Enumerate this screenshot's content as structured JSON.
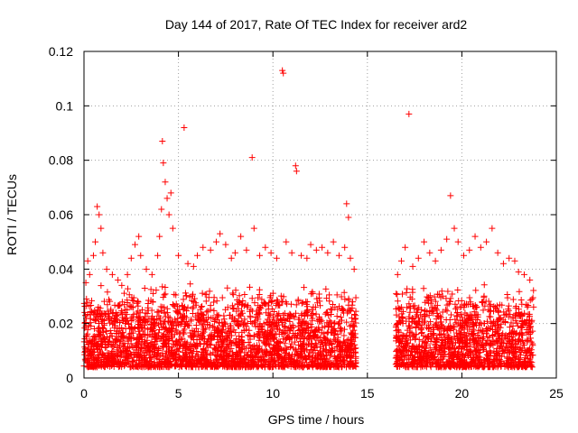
{
  "chart_data": {
    "type": "scatter",
    "title": "Day 144 of 2017, Rate Of TEC Index for receiver ard2",
    "xlabel": "GPS time / hours",
    "ylabel": "ROTI / TECUs",
    "xlim": [
      0,
      25
    ],
    "ylim": [
      0,
      0.12
    ],
    "x_ticks": [
      0,
      5,
      10,
      15,
      20,
      25
    ],
    "x_tick_labels": [
      "0",
      "5",
      "10",
      "15",
      "20",
      "25"
    ],
    "y_ticks": [
      0,
      0.02,
      0.04,
      0.06,
      0.08,
      0.1,
      0.12
    ],
    "y_tick_labels": [
      "0",
      "0.02",
      "0.04",
      "0.06",
      "0.08",
      "0.1",
      "0.12"
    ],
    "grid": true,
    "marker": "+",
    "color": "#ff0000",
    "data_gap_hours": [
      14.4,
      16.5
    ],
    "series": [
      {
        "name": "ROTI",
        "points": [
          [
            0.1,
            0.035
          ],
          [
            0.2,
            0.043
          ],
          [
            0.3,
            0.038
          ],
          [
            0.5,
            0.045
          ],
          [
            0.6,
            0.05
          ],
          [
            0.7,
            0.063
          ],
          [
            0.8,
            0.06
          ],
          [
            0.9,
            0.055
          ],
          [
            1.0,
            0.046
          ],
          [
            1.2,
            0.04
          ],
          [
            1.5,
            0.038
          ],
          [
            1.8,
            0.036
          ],
          [
            2.0,
            0.034
          ],
          [
            2.3,
            0.038
          ],
          [
            2.5,
            0.044
          ],
          [
            2.7,
            0.049
          ],
          [
            2.9,
            0.052
          ],
          [
            3.0,
            0.045
          ],
          [
            3.3,
            0.04
          ],
          [
            3.6,
            0.038
          ],
          [
            3.9,
            0.045
          ],
          [
            4.0,
            0.052
          ],
          [
            4.1,
            0.062
          ],
          [
            4.15,
            0.087
          ],
          [
            4.2,
            0.079
          ],
          [
            4.3,
            0.072
          ],
          [
            4.4,
            0.066
          ],
          [
            4.5,
            0.06
          ],
          [
            4.6,
            0.068
          ],
          [
            4.7,
            0.055
          ],
          [
            5.0,
            0.045
          ],
          [
            5.3,
            0.092
          ],
          [
            5.5,
            0.042
          ],
          [
            5.8,
            0.041
          ],
          [
            6.0,
            0.045
          ],
          [
            6.3,
            0.048
          ],
          [
            6.7,
            0.047
          ],
          [
            7.0,
            0.05
          ],
          [
            7.2,
            0.053
          ],
          [
            7.5,
            0.049
          ],
          [
            7.8,
            0.044
          ],
          [
            8.0,
            0.046
          ],
          [
            8.3,
            0.052
          ],
          [
            8.6,
            0.047
          ],
          [
            8.9,
            0.081
          ],
          [
            9.0,
            0.055
          ],
          [
            9.3,
            0.045
          ],
          [
            9.6,
            0.048
          ],
          [
            9.9,
            0.046
          ],
          [
            10.2,
            0.044
          ],
          [
            10.5,
            0.113
          ],
          [
            10.55,
            0.112
          ],
          [
            10.7,
            0.05
          ],
          [
            11.0,
            0.046
          ],
          [
            11.2,
            0.078
          ],
          [
            11.25,
            0.076
          ],
          [
            11.5,
            0.045
          ],
          [
            11.8,
            0.044
          ],
          [
            12.0,
            0.049
          ],
          [
            12.3,
            0.047
          ],
          [
            12.6,
            0.048
          ],
          [
            12.9,
            0.046
          ],
          [
            13.2,
            0.05
          ],
          [
            13.5,
            0.045
          ],
          [
            13.8,
            0.048
          ],
          [
            13.9,
            0.064
          ],
          [
            14.0,
            0.059
          ],
          [
            14.1,
            0.044
          ],
          [
            14.3,
            0.04
          ],
          [
            16.6,
            0.038
          ],
          [
            16.8,
            0.043
          ],
          [
            17.0,
            0.048
          ],
          [
            17.2,
            0.097
          ],
          [
            17.4,
            0.041
          ],
          [
            17.7,
            0.044
          ],
          [
            18.0,
            0.05
          ],
          [
            18.3,
            0.046
          ],
          [
            18.6,
            0.043
          ],
          [
            18.9,
            0.047
          ],
          [
            19.2,
            0.051
          ],
          [
            19.4,
            0.067
          ],
          [
            19.6,
            0.055
          ],
          [
            19.8,
            0.05
          ],
          [
            20.1,
            0.045
          ],
          [
            20.4,
            0.047
          ],
          [
            20.7,
            0.052
          ],
          [
            21.0,
            0.048
          ],
          [
            21.3,
            0.05
          ],
          [
            21.6,
            0.055
          ],
          [
            21.9,
            0.046
          ],
          [
            22.2,
            0.042
          ],
          [
            22.5,
            0.044
          ],
          [
            22.8,
            0.043
          ],
          [
            23.0,
            0.039
          ],
          [
            23.3,
            0.038
          ],
          [
            23.6,
            0.036
          ]
        ],
        "bulk_range": [
          0.004,
          0.035
        ]
      }
    ]
  }
}
